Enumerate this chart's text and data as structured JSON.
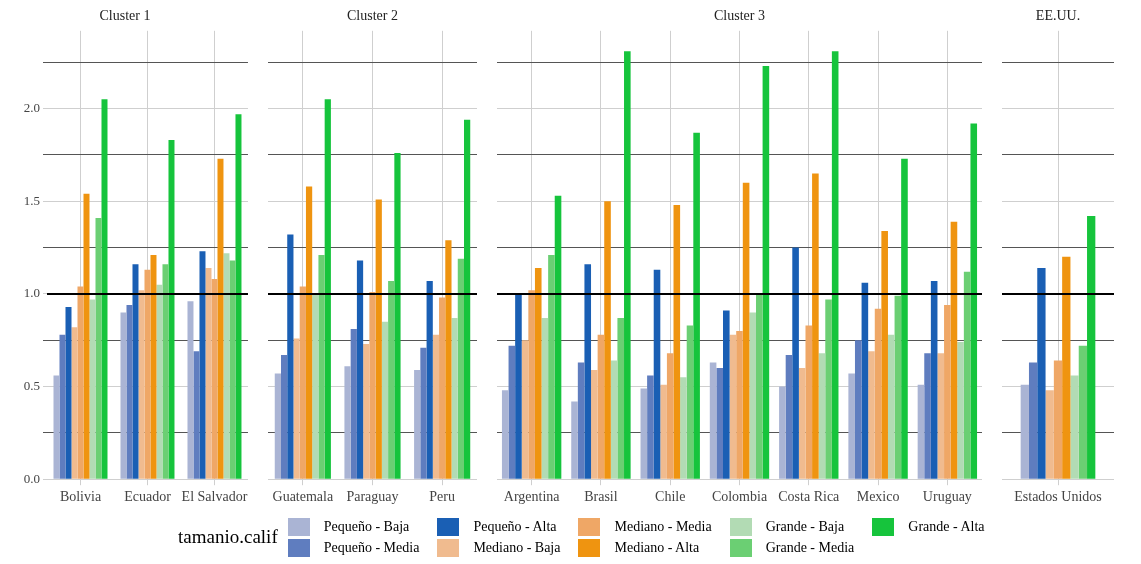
{
  "chart_data": [
    {
      "type": "bar",
      "title": "Cluster 1",
      "legend": "bottom",
      "legend_title": "tamanio.calif",
      "grid": true,
      "categories": [
        "Bolivia",
        "Ecuador",
        "El Salvador"
      ],
      "ylim": [
        0,
        2.42
      ],
      "yticks": [
        {
          "value": 0,
          "label": "0.0"
        },
        {
          "value": 0.25,
          "label": null
        },
        0.5,
        {
          "value": 0.75,
          "label": null
        },
        {
          "value": 1,
          "label": "1.0"
        },
        {
          "value": 1.25,
          "label": null
        },
        1.5,
        {
          "value": 1.75,
          "label": null
        },
        {
          "value": 2,
          "label": "2.0"
        },
        {
          "value": 2.25,
          "label": null
        }
      ],
      "ref_lines": [
        {
          "axis": "y",
          "value": 1.0,
          "color": "#000000"
        }
      ],
      "series": [
        {
          "name": "Pequeño - Baja",
          "color": "#aab4d4",
          "values": [
            0.56,
            0.9,
            0.96
          ]
        },
        {
          "name": "Pequeño - Media",
          "color": "#5f7dbf",
          "values": [
            0.78,
            0.94,
            0.69
          ]
        },
        {
          "name": "Pequeño - Alta",
          "color": "#1a5fb4",
          "values": [
            0.93,
            1.16,
            1.23
          ]
        },
        {
          "name": "Mediano - Baja",
          "color": "#f0bb8f",
          "values": [
            0.82,
            1.02,
            1.14
          ]
        },
        {
          "name": "Mediano - Media",
          "color": "#efa766",
          "values": [
            1.04,
            1.13,
            1.08
          ]
        },
        {
          "name": "Mediano - Alta",
          "color": "#ef9410",
          "values": [
            1.54,
            1.21,
            1.73
          ]
        },
        {
          "name": "Grande - Baja",
          "color": "#b2dbb4",
          "values": [
            0.97,
            1.05,
            1.22
          ]
        },
        {
          "name": "Grande - Media",
          "color": "#6bcf73",
          "values": [
            1.41,
            1.16,
            1.18
          ]
        },
        {
          "name": "Grande - Alta",
          "color": "#16c43c",
          "values": [
            2.05,
            1.83,
            1.97
          ]
        }
      ]
    },
    {
      "type": "bar",
      "title": "Cluster 2",
      "grid": true,
      "tick_labels": "x",
      "categories": [
        "Guatemala",
        "Paraguay",
        "Peru"
      ],
      "ylim": [
        0,
        2.42
      ],
      "yticks": [
        0,
        0.25,
        0.5,
        0.75,
        1,
        1.25,
        1.5,
        1.75,
        2,
        2.25
      ],
      "ref_lines": [
        {
          "axis": "y",
          "value": 1.0,
          "color": "#000000"
        }
      ],
      "series": [
        {
          "color": "#aab4d4",
          "values": [
            0.57,
            0.61,
            0.59
          ]
        },
        {
          "color": "#5f7dbf",
          "values": [
            0.67,
            0.81,
            0.71
          ]
        },
        {
          "color": "#1a5fb4",
          "values": [
            1.32,
            1.18,
            1.07
          ]
        },
        {
          "color": "#f0bb8f",
          "values": [
            0.76,
            0.73,
            0.78
          ]
        },
        {
          "color": "#efa766",
          "values": [
            1.04,
            1.01,
            0.98
          ]
        },
        {
          "color": "#ef9410",
          "values": [
            1.58,
            1.51,
            1.29
          ]
        },
        {
          "color": "#b2dbb4",
          "values": [
            1.0,
            0.85,
            0.87
          ]
        },
        {
          "color": "#6bcf73",
          "values": [
            1.21,
            1.07,
            1.19
          ]
        },
        {
          "color": "#16c43c",
          "values": [
            2.05,
            1.76,
            1.94
          ]
        }
      ]
    },
    {
      "type": "bar",
      "title": "Cluster 3",
      "grid": true,
      "tick_labels": "x",
      "categories": [
        "Argentina",
        "Brasil",
        "Chile",
        "Colombia",
        "Costa Rica",
        "Mexico",
        "Uruguay"
      ],
      "ylim": [
        0,
        2.42
      ],
      "yticks": [
        0,
        0.25,
        0.5,
        0.75,
        1,
        1.25,
        1.5,
        1.75,
        2,
        2.25
      ],
      "ref_lines": [
        {
          "axis": "y",
          "value": 1.0,
          "color": "#000000"
        }
      ],
      "series": [
        {
          "color": "#aab4d4",
          "values": [
            0.48,
            0.42,
            0.49,
            0.63,
            0.5,
            0.57,
            0.51
          ]
        },
        {
          "color": "#5f7dbf",
          "values": [
            0.72,
            0.63,
            0.56,
            0.6,
            0.67,
            0.75,
            0.68
          ]
        },
        {
          "color": "#1a5fb4",
          "values": [
            1.0,
            1.16,
            1.13,
            0.91,
            1.25,
            1.06,
            1.07
          ]
        },
        {
          "color": "#f0bb8f",
          "values": [
            0.75,
            0.59,
            0.51,
            0.78,
            0.6,
            0.69,
            0.68
          ]
        },
        {
          "color": "#efa766",
          "values": [
            1.02,
            0.78,
            0.68,
            0.8,
            0.83,
            0.92,
            0.94
          ]
        },
        {
          "color": "#ef9410",
          "values": [
            1.14,
            1.5,
            1.48,
            1.6,
            1.65,
            1.34,
            1.39
          ]
        },
        {
          "color": "#b2dbb4",
          "values": [
            0.87,
            0.64,
            0.55,
            0.9,
            0.68,
            0.78,
            0.74
          ]
        },
        {
          "color": "#6bcf73",
          "values": [
            1.21,
            0.87,
            0.83,
            1.0,
            0.97,
            0.99,
            1.12
          ]
        },
        {
          "color": "#16c43c",
          "values": [
            1.53,
            2.31,
            1.87,
            2.23,
            2.31,
            1.73,
            1.92
          ]
        }
      ]
    },
    {
      "type": "bar",
      "title": "EE.UU.",
      "grid": true,
      "tick_labels": "x",
      "categories": [
        "Estados Unidos"
      ],
      "ylim": [
        0,
        2.42
      ],
      "yticks": [
        0,
        0.25,
        0.5,
        0.75,
        1,
        1.25,
        1.5,
        1.75,
        2,
        2.25
      ],
      "ref_lines": [
        {
          "axis": "y",
          "value": 1.0,
          "color": "#000000"
        }
      ],
      "series": [
        {
          "color": "#aab4d4",
          "values": [
            0.51
          ]
        },
        {
          "color": "#5f7dbf",
          "values": [
            0.63
          ]
        },
        {
          "color": "#1a5fb4",
          "values": [
            1.14
          ]
        },
        {
          "color": "#f0bb8f",
          "values": [
            0.48
          ]
        },
        {
          "color": "#efa766",
          "values": [
            0.64
          ]
        },
        {
          "color": "#ef9410",
          "values": [
            1.2
          ]
        },
        {
          "color": "#b2dbb4",
          "values": [
            0.56
          ]
        },
        {
          "color": "#6bcf73",
          "values": [
            0.72
          ]
        },
        {
          "color": "#16c43c",
          "values": [
            1.42
          ]
        }
      ]
    }
  ]
}
